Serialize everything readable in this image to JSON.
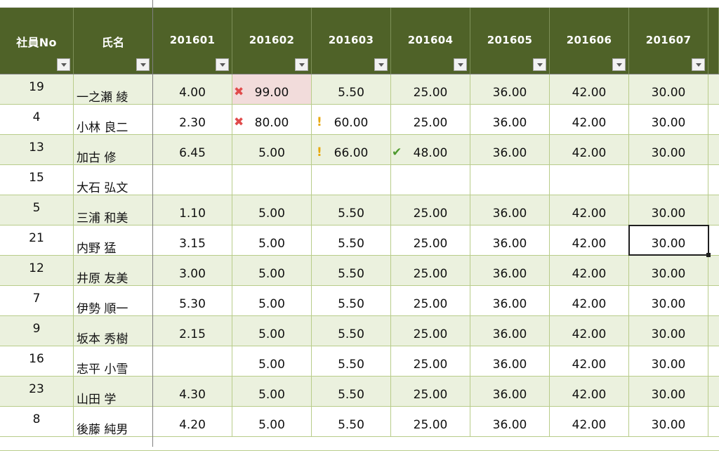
{
  "headers": [
    {
      "key": "no",
      "label": "社員No"
    },
    {
      "key": "name",
      "label": "氏名"
    },
    {
      "key": "m1",
      "label": "201601"
    },
    {
      "key": "m2",
      "label": "201602"
    },
    {
      "key": "m3",
      "label": "201603"
    },
    {
      "key": "m4",
      "label": "201604"
    },
    {
      "key": "m5",
      "label": "201605"
    },
    {
      "key": "m6",
      "label": "201606"
    },
    {
      "key": "m7",
      "label": "201607"
    }
  ],
  "rows": [
    {
      "no": "19",
      "name": "一之瀬 綾",
      "m1": "4.00",
      "m2": "99.00",
      "m3": "5.50",
      "m4": "25.00",
      "m5": "36.00",
      "m6": "42.00",
      "m7": "30.00"
    },
    {
      "no": "4",
      "name": "小林 良二",
      "m1": "2.30",
      "m2": "80.00",
      "m3": "60.00",
      "m4": "25.00",
      "m5": "36.00",
      "m6": "42.00",
      "m7": "30.00"
    },
    {
      "no": "13",
      "name": "加古 修",
      "m1": "6.45",
      "m2": "5.00",
      "m3": "66.00",
      "m4": "48.00",
      "m5": "36.00",
      "m6": "42.00",
      "m7": "30.00"
    },
    {
      "no": "15",
      "name": "大石 弘文",
      "m1": "",
      "m2": "",
      "m3": "",
      "m4": "",
      "m5": "",
      "m6": "",
      "m7": ""
    },
    {
      "no": "5",
      "name": "三浦 和美",
      "m1": "1.10",
      "m2": "5.00",
      "m3": "5.50",
      "m4": "25.00",
      "m5": "36.00",
      "m6": "42.00",
      "m7": "30.00"
    },
    {
      "no": "21",
      "name": "内野 猛",
      "m1": "3.15",
      "m2": "5.00",
      "m3": "5.50",
      "m4": "25.00",
      "m5": "36.00",
      "m6": "42.00",
      "m7": "30.00"
    },
    {
      "no": "12",
      "name": "井原 友美",
      "m1": "3.00",
      "m2": "5.00",
      "m3": "5.50",
      "m4": "25.00",
      "m5": "36.00",
      "m6": "42.00",
      "m7": "30.00"
    },
    {
      "no": "7",
      "name": "伊勢 順一",
      "m1": "5.30",
      "m2": "5.00",
      "m3": "5.50",
      "m4": "25.00",
      "m5": "36.00",
      "m6": "42.00",
      "m7": "30.00"
    },
    {
      "no": "9",
      "name": "坂本 秀樹",
      "m1": "2.15",
      "m2": "5.00",
      "m3": "5.50",
      "m4": "25.00",
      "m5": "36.00",
      "m6": "42.00",
      "m7": "30.00"
    },
    {
      "no": "16",
      "name": "志平 小雪",
      "m1": "",
      "m2": "5.00",
      "m3": "5.50",
      "m4": "25.00",
      "m5": "36.00",
      "m6": "42.00",
      "m7": "30.00"
    },
    {
      "no": "23",
      "name": "山田 学",
      "m1": "4.30",
      "m2": "5.00",
      "m3": "5.50",
      "m4": "25.00",
      "m5": "36.00",
      "m6": "42.00",
      "m7": "30.00"
    },
    {
      "no": "8",
      "name": "後藤 純男",
      "m1": "4.20",
      "m2": "5.00",
      "m3": "5.50",
      "m4": "25.00",
      "m5": "36.00",
      "m6": "42.00",
      "m7": "30.00"
    }
  ],
  "flags": [
    {
      "row": 0,
      "col": "m2",
      "icon": "x-icon",
      "highlight": true
    },
    {
      "row": 1,
      "col": "m2",
      "icon": "x-icon"
    },
    {
      "row": 1,
      "col": "m3",
      "icon": "warn-icon"
    },
    {
      "row": 2,
      "col": "m3",
      "icon": "warn-icon"
    },
    {
      "row": 2,
      "col": "m4",
      "icon": "check-icon"
    }
  ],
  "icon_glyphs": {
    "x-icon": "✖",
    "warn-icon": "!",
    "check-icon": "✔"
  },
  "colors": {
    "header": "#4f6228",
    "band": "#ebf1de",
    "error_fill": "#f2dcdb"
  },
  "selected_cell": {
    "row": 5,
    "col": "m7"
  }
}
